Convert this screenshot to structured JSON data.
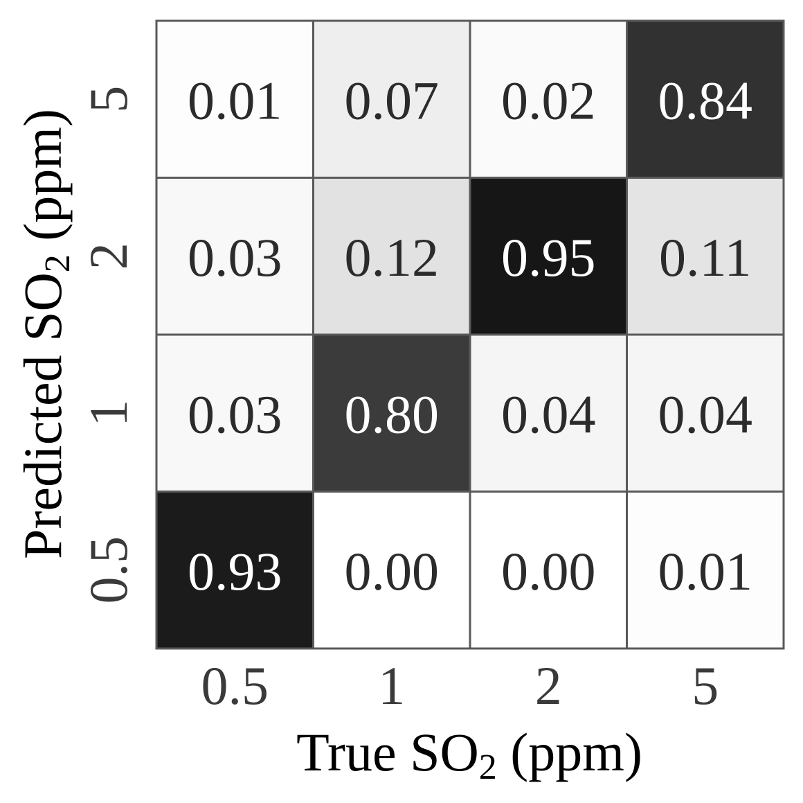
{
  "chart_data": {
    "type": "heatmap",
    "xlabel": {
      "prefix": "True SO",
      "subscript": "2",
      "suffix": " (ppm)"
    },
    "ylabel": {
      "prefix": "Predicted SO",
      "subscript": "2",
      "suffix": " (ppm)"
    },
    "x_categories": [
      "0.5",
      "1",
      "2",
      "5"
    ],
    "y_categories_top_to_bottom": [
      "5",
      "2",
      "1",
      "0.5"
    ],
    "values_top_to_bottom": [
      [
        0.01,
        0.07,
        0.02,
        0.84
      ],
      [
        0.03,
        0.12,
        0.95,
        0.11
      ],
      [
        0.03,
        0.8,
        0.04,
        0.04
      ],
      [
        0.93,
        0.0,
        0.0,
        0.01
      ]
    ],
    "value_format": "0.00",
    "colormap": "greys",
    "vmin": 0,
    "vmax": 1,
    "colors": {
      "light_text": "#ffffff",
      "dark_text": "#2b2b2b",
      "grid_line": "#595959"
    }
  }
}
